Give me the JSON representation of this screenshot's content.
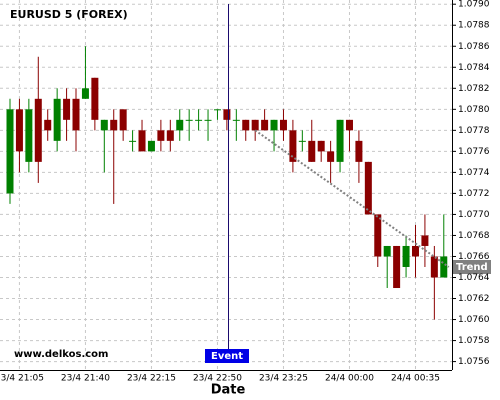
{
  "chart_data": {
    "type": "candlestick",
    "title": "EURUSD 5 (FOREX)",
    "x_label": "Date",
    "watermark": "www.delkos.com",
    "event_label": "Event",
    "trend": {
      "label": "Trend",
      "values": [
        1.0778,
        1.0765
      ],
      "color": "#808080"
    },
    "categories": [
      null,
      "23/4 21:05",
      null,
      null,
      null,
      null,
      null,
      null,
      "23/4 21:40",
      null,
      null,
      null,
      null,
      null,
      null,
      "23/4 22:15",
      null,
      null,
      null,
      null,
      null,
      null,
      "23/4 22:50",
      null,
      null,
      null,
      null,
      null,
      null,
      "23/4 23:25",
      null,
      null,
      null,
      null,
      null,
      null,
      "24/4 00:00",
      null,
      null,
      null,
      null,
      null,
      null,
      "24/4 00:35",
      null,
      null,
      null
    ],
    "open": [
      1.0772,
      1.078,
      1.0775,
      1.0781,
      1.0779,
      1.0777,
      1.0781,
      1.0781,
      1.0781,
      1.0783,
      1.0778,
      1.0779,
      1.078,
      1.0777,
      1.0778,
      1.0776,
      1.0778,
      1.0778,
      1.0778,
      1.0779,
      1.0779,
      1.0779,
      1.078,
      1.078,
      1.0779,
      1.0779,
      1.0779,
      1.0779,
      1.0778,
      1.0779,
      1.0778,
      1.0777,
      1.0777,
      1.0777,
      1.0776,
      1.0775,
      1.0779,
      1.0777,
      1.0775,
      1.077,
      1.0766,
      1.0767,
      1.0765,
      1.0767,
      1.0768,
      1.0766,
      1.0764
    ],
    "high": [
      1.0781,
      1.0781,
      1.0781,
      1.0785,
      1.078,
      1.0782,
      1.0782,
      1.0782,
      1.0786,
      1.0783,
      1.0779,
      1.078,
      1.078,
      1.0778,
      1.0779,
      1.0777,
      1.0779,
      1.0779,
      1.078,
      1.078,
      1.078,
      1.078,
      1.078,
      1.078,
      1.078,
      1.0779,
      1.0779,
      1.078,
      1.0779,
      1.078,
      1.0779,
      1.0778,
      1.0779,
      1.0777,
      1.0777,
      1.0779,
      1.0779,
      1.0778,
      1.0775,
      1.077,
      1.0767,
      1.0767,
      1.0768,
      1.0769,
      1.077,
      1.0767,
      1.077
    ],
    "low": [
      1.0771,
      1.0774,
      1.0774,
      1.0773,
      1.0777,
      1.0776,
      1.0777,
      1.0776,
      1.0781,
      1.0778,
      1.0774,
      1.0771,
      1.0777,
      1.0776,
      1.0776,
      1.0776,
      1.0776,
      1.0776,
      1.0777,
      1.0777,
      1.0778,
      1.0777,
      1.0779,
      1.0778,
      1.0777,
      1.0777,
      1.0777,
      1.0778,
      1.0776,
      1.0777,
      1.0774,
      1.0776,
      1.0775,
      1.0775,
      1.0773,
      1.0774,
      1.0776,
      1.0773,
      1.077,
      1.0765,
      1.0763,
      1.0763,
      1.0764,
      1.0764,
      1.0765,
      1.076,
      1.0764
    ],
    "close": [
      1.078,
      1.0776,
      1.078,
      1.0775,
      1.0778,
      1.0781,
      1.0779,
      1.0778,
      1.0782,
      1.0779,
      1.0779,
      1.0778,
      1.0778,
      1.0777,
      1.0776,
      1.0777,
      1.0777,
      1.0777,
      1.0779,
      1.0779,
      1.0779,
      1.0779,
      1.078,
      1.0779,
      1.0779,
      1.0778,
      1.0778,
      1.0778,
      1.0779,
      1.0778,
      1.0775,
      1.0777,
      1.0775,
      1.0776,
      1.0775,
      1.0779,
      1.0778,
      1.0775,
      1.077,
      1.0766,
      1.0767,
      1.0763,
      1.0767,
      1.0766,
      1.0767,
      1.0764,
      1.0766
    ],
    "up_color": "#008000",
    "down_color": "#8b0000",
    "ylim": [
      1.07552,
      1.07904
    ],
    "yticks": [
      {
        "value": 1.0756,
        "label": "1.0756"
      },
      {
        "value": 1.0758,
        "label": "1.0758"
      },
      {
        "value": 1.076,
        "label": "1.0760"
      },
      {
        "value": 1.0762,
        "label": "1.0762"
      },
      {
        "value": 1.0764,
        "label": "1.0764"
      },
      {
        "value": 1.0766,
        "label": "1.0766"
      },
      {
        "value": 1.0768,
        "label": "1.0768"
      },
      {
        "value": 1.077,
        "label": "1.0770"
      },
      {
        "value": 1.0772,
        "label": "1.0772"
      },
      {
        "value": 1.0774,
        "label": "1.0774"
      },
      {
        "value": 1.0776,
        "label": "1.0776"
      },
      {
        "value": 1.0778,
        "label": "1.0778"
      },
      {
        "value": 1.078,
        "label": "1.0780"
      },
      {
        "value": 1.0782,
        "label": "1.0782"
      },
      {
        "value": 1.0784,
        "label": "1.0784"
      },
      {
        "value": 1.0786,
        "label": "1.0786"
      },
      {
        "value": 1.0788,
        "label": "1.0788"
      },
      {
        "value": 1.079,
        "label": "1.0790"
      }
    ],
    "grid": true
  }
}
